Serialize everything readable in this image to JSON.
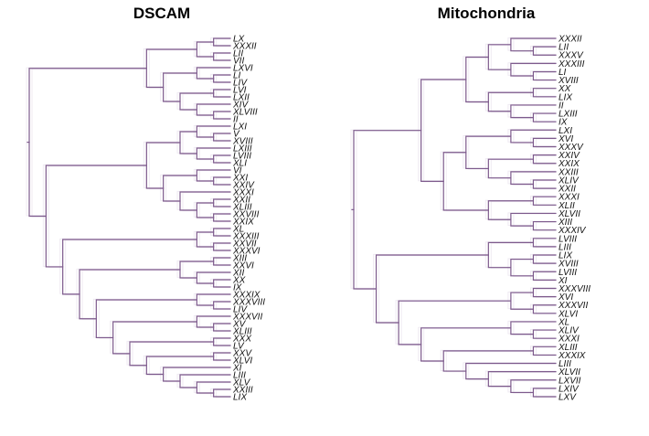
{
  "chart_data": [
    {
      "type": "dendrogram",
      "title": "DSCAM",
      "orientation": "right",
      "colors": {
        "branch": "#7d5a8c",
        "ghost": "#9b7fb0"
      },
      "tips": [
        "LX",
        "XXXII",
        "LII",
        "VII",
        "LXVI",
        "LI",
        "LIV",
        "LVI",
        "LXII",
        "XIV",
        "XLVIII",
        "II",
        "LXI",
        "V",
        "XVIII",
        "LXIII",
        "LVIII",
        "XLI",
        "VI",
        "XXI",
        "XXIV",
        "XXXI",
        "XXII",
        "XLIII",
        "XXVIII",
        "XXIX",
        "XL",
        "XXXIII",
        "XXVII",
        "XXXVI",
        "XIII",
        "XXVI",
        "XII",
        "XX",
        "IX",
        "XXXIX",
        "XXXVIII",
        "LIV",
        "XXXVII",
        "XV",
        "XLIII",
        "XXX",
        "LV",
        "XXV",
        "XLVI",
        "XI",
        "LIII",
        "XLV",
        "XXIII",
        "LIX"
      ],
      "tree": [
        [
          [
            [
              0,
              1
            ],
            [
              2,
              3
            ]
          ],
          [
            [
              4,
              [
                5,
                6
              ]
            ],
            [
              [
                7,
                8
              ],
              [
                9,
                [
                  10,
                  11
                ]
              ]
            ]
          ]
        ],
        [
          [
            [
              [
                12,
                [
                  13,
                  14
                ]
              ],
              [
                15,
                [
                  16,
                  17
                ]
              ]
            ],
            [
              [
                18,
                [
                  19,
                  20
                ]
              ],
              [
                21,
                [
                  [
                    22,
                    23
                  ],
                  [
                    24,
                    25
                  ]
                ]
              ]
            ]
          ],
          [
            [
              [
                26,
                27
              ],
              [
                28,
                29
              ]
            ],
            [
              [
                [
                  30,
                  31
                ],
                [
                  32,
                  [
                    33,
                    34
                  ]
                ]
              ],
              [
                [
                  35,
                  [
                    36,
                    37
                  ]
                ],
                [
                  [
                    38,
                    [
                      39,
                      40
                    ]
                  ],
                  [
                    [
                      41,
                      42
                    ],
                    [
                      [
                        43,
                        44
                      ],
                      [
                        45,
                        [
                          46,
                          [
                            47,
                            [
                              48,
                              49
                            ]
                          ]
                        ]
                      ]
                    ]
                  ]
                ]
              ]
            ]
          ]
        ]
      ]
    },
    {
      "type": "dendrogram",
      "title": "Mitochondria",
      "orientation": "right",
      "colors": {
        "branch": "#7d5a8c",
        "ghost": "#9b7fb0"
      },
      "tips": [
        "XXXII",
        "LII",
        "XXXV",
        "XXXIII",
        "LI",
        "XVIII",
        "XX",
        "LIX",
        "II",
        "LXIII",
        "IX",
        "LXI",
        "XVI",
        "XXXV",
        "XXIV",
        "XXIX",
        "XXIII",
        "XLIV",
        "XXII",
        "XXXI",
        "XLII",
        "XLVII",
        "XIII",
        "XXXIV",
        "LVIII",
        "LIII",
        "LIX",
        "XVIII",
        "LVIII",
        "XI",
        "XXXVIII",
        "XVI",
        "XXXVII",
        "XLVI",
        "XL",
        "XLIV",
        "XXXI",
        "XLIII",
        "XXXIX",
        "LIII",
        "XLVII",
        "LXVII",
        "LXIV",
        "LXV"
      ],
      "tree": [
        [
          [
            [
              [
                0,
                [
                  1,
                  2
                ]
              ],
              [
                3,
                [
                  4,
                  5
                ]
              ]
            ],
            [
              [
                6,
                7
              ],
              [
                8,
                [
                  9,
                  10
                ]
              ]
            ]
          ],
          [
            [
              [
                11,
                [
                  12,
                  13
                ]
              ],
              [
                [
                  14,
                  15
                ],
                [
                  16,
                  [
                    17,
                    18
                  ]
                ]
              ]
            ],
            [
              [
                19,
                20
              ],
              [
                21,
                [
                  22,
                  23
                ]
              ]
            ]
          ]
        ],
        [
          [
            [
              24,
              25
            ],
            [
              [
                26,
                27
              ],
              [
                28,
                29
              ]
            ]
          ],
          [
            [
              [
                30,
                31
              ],
              [
                32,
                33
              ]
            ],
            [
              [
                34,
                [
                  35,
                  36
                ]
              ],
              [
                [
                  37,
                  38
                ],
                [
                  39,
                  [
                    40,
                    [
                      41,
                      [
                        42,
                        43
                      ]
                    ]
                  ]
                ]
              ]
            ]
          ]
        ]
      ]
    }
  ]
}
